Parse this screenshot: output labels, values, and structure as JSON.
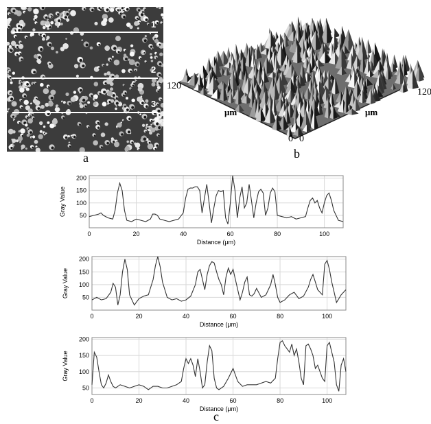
{
  "panel_labels": {
    "a": "a",
    "b": "b",
    "c": "c"
  },
  "micrograph": {
    "line_labels": [
      "1",
      "2",
      "3"
    ],
    "line_color": "#ffffff"
  },
  "surface": {
    "left_axis_max": "120",
    "left_axis_zero": "0",
    "right_axis_max": "120",
    "right_axis_zero": "0",
    "left_axis_unit": "μm",
    "right_axis_unit": "μm"
  },
  "chart_data": [
    {
      "type": "line",
      "xlabel": "Distance (μm)",
      "ylabel": "Gray Value",
      "xlim": [
        0,
        108
      ],
      "ylim": [
        0,
        210
      ],
      "xticks": [
        0,
        20,
        40,
        60,
        80,
        100
      ],
      "yticks": [
        50,
        100,
        150,
        200
      ],
      "grid": true,
      "x": [
        0,
        2,
        4,
        5,
        6,
        8,
        10,
        11,
        12,
        13,
        14,
        15,
        16,
        18,
        20,
        22,
        24,
        26,
        27,
        28,
        29,
        30,
        32,
        34,
        36,
        38,
        40,
        41,
        42,
        43,
        44,
        45,
        46,
        47,
        48,
        49,
        50,
        51,
        52,
        53,
        54,
        55,
        56,
        57,
        58,
        59,
        60,
        61,
        62,
        63,
        64,
        65,
        66,
        67,
        68,
        69,
        70,
        71,
        72,
        73,
        74,
        75,
        76,
        77,
        78,
        79,
        80,
        82,
        84,
        86,
        88,
        90,
        92,
        93,
        94,
        95,
        96,
        97,
        98,
        99,
        100,
        101,
        102,
        103,
        104,
        106,
        108
      ],
      "values": [
        45,
        50,
        55,
        60,
        50,
        40,
        35,
        70,
        140,
        180,
        150,
        70,
        30,
        25,
        35,
        30,
        25,
        35,
        55,
        55,
        50,
        35,
        30,
        25,
        30,
        35,
        60,
        120,
        155,
        160,
        160,
        165,
        165,
        150,
        60,
        120,
        175,
        100,
        20,
        80,
        130,
        150,
        145,
        150,
        40,
        15,
        100,
        210,
        150,
        40,
        120,
        165,
        80,
        100,
        175,
        110,
        40,
        100,
        145,
        155,
        140,
        50,
        80,
        140,
        160,
        145,
        50,
        45,
        40,
        45,
        35,
        40,
        45,
        80,
        110,
        120,
        100,
        110,
        80,
        60,
        100,
        130,
        140,
        110,
        70,
        30,
        25
      ]
    },
    {
      "type": "line",
      "xlabel": "Distance (μm)",
      "ylabel": "Gray Value",
      "xlim": [
        0,
        108
      ],
      "ylim": [
        0,
        210
      ],
      "xticks": [
        0,
        20,
        40,
        60,
        80,
        100
      ],
      "yticks": [
        50,
        100,
        150,
        200
      ],
      "grid": true,
      "x": [
        0,
        2,
        4,
        6,
        8,
        9,
        10,
        11,
        12,
        13,
        14,
        15,
        16,
        18,
        20,
        22,
        24,
        26,
        27,
        28,
        29,
        30,
        32,
        34,
        36,
        38,
        40,
        42,
        44,
        45,
        46,
        47,
        48,
        49,
        50,
        51,
        52,
        53,
        54,
        55,
        56,
        57,
        58,
        59,
        60,
        61,
        62,
        63,
        64,
        65,
        66,
        67,
        68,
        69,
        70,
        72,
        74,
        76,
        77,
        78,
        79,
        80,
        82,
        84,
        86,
        88,
        90,
        92,
        93,
        94,
        95,
        96,
        97,
        98,
        99,
        100,
        101,
        102,
        103,
        104,
        106,
        108
      ],
      "values": [
        40,
        50,
        40,
        45,
        70,
        105,
        90,
        20,
        60,
        150,
        200,
        160,
        60,
        20,
        45,
        55,
        60,
        120,
        175,
        210,
        170,
        110,
        50,
        40,
        45,
        35,
        40,
        55,
        100,
        150,
        160,
        120,
        80,
        140,
        175,
        190,
        185,
        150,
        120,
        100,
        60,
        130,
        165,
        140,
        160,
        120,
        80,
        40,
        70,
        110,
        130,
        60,
        55,
        65,
        85,
        50,
        60,
        100,
        140,
        100,
        50,
        30,
        40,
        60,
        70,
        45,
        55,
        90,
        120,
        140,
        110,
        80,
        70,
        60,
        180,
        195,
        160,
        110,
        70,
        30,
        60,
        80
      ]
    },
    {
      "type": "line",
      "xlabel": "Distance (μm)",
      "ylabel": "Gray Value",
      "xlim": [
        0,
        108
      ],
      "ylim": [
        30,
        205
      ],
      "xticks": [
        0,
        20,
        40,
        60,
        80,
        100
      ],
      "yticks": [
        50,
        100,
        150,
        200
      ],
      "grid": true,
      "x": [
        0,
        1,
        2,
        3,
        4,
        5,
        6,
        7,
        8,
        9,
        10,
        12,
        14,
        16,
        18,
        20,
        22,
        24,
        26,
        28,
        30,
        32,
        34,
        36,
        38,
        39,
        40,
        41,
        42,
        43,
        44,
        45,
        46,
        47,
        48,
        49,
        50,
        51,
        52,
        53,
        54,
        56,
        58,
        60,
        62,
        64,
        66,
        68,
        70,
        72,
        74,
        76,
        78,
        79,
        80,
        81,
        82,
        83,
        84,
        85,
        86,
        87,
        88,
        89,
        90,
        91,
        92,
        93,
        94,
        95,
        96,
        97,
        98,
        99,
        100,
        101,
        102,
        103,
        104,
        105,
        106,
        107,
        108
      ],
      "values": [
        60,
        160,
        145,
        100,
        60,
        50,
        65,
        90,
        70,
        55,
        50,
        60,
        55,
        50,
        55,
        60,
        55,
        45,
        55,
        55,
        50,
        50,
        55,
        60,
        70,
        110,
        140,
        125,
        140,
        120,
        85,
        140,
        100,
        50,
        60,
        130,
        180,
        165,
        80,
        50,
        45,
        55,
        80,
        110,
        70,
        55,
        60,
        60,
        60,
        65,
        70,
        65,
        80,
        140,
        190,
        195,
        180,
        170,
        160,
        185,
        150,
        170,
        130,
        80,
        60,
        180,
        185,
        170,
        150,
        110,
        120,
        100,
        80,
        70,
        180,
        190,
        160,
        130,
        60,
        40,
        120,
        140,
        100
      ]
    }
  ]
}
